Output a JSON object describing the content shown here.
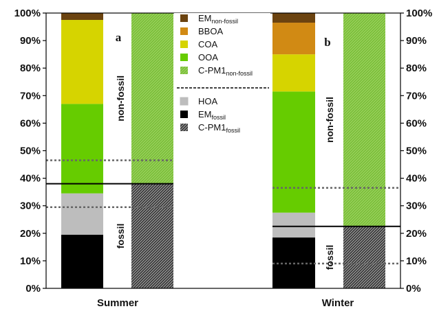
{
  "chart_data": {
    "type": "bar",
    "stacked": true,
    "categories": [
      "Summer",
      "Winter"
    ],
    "panel_labels": [
      "a",
      "b"
    ],
    "y_ticks": [
      "0%",
      "10%",
      "20%",
      "30%",
      "40%",
      "50%",
      "60%",
      "70%",
      "80%",
      "90%",
      "100%"
    ],
    "ylim": [
      0,
      100
    ],
    "y_unit": "%",
    "grid": false,
    "legend_position": "top-center",
    "colors": {
      "EMnon-fossil": "#6b4310",
      "BBOA": "#d18a14",
      "COA": "#d6d400",
      "OOA": "#66cc00",
      "C-PM1non-fossil": "#7bbf3a",
      "HOA": "#bdbdbd",
      "EMfossil": "#000000",
      "C-PM1fossil": "#3a3a3a"
    },
    "legend": [
      {
        "key": "EMnon-fossil",
        "base": "EM",
        "sub": "non-fossil"
      },
      {
        "key": "BBOA",
        "base": "BBOA",
        "sub": ""
      },
      {
        "key": "COA",
        "base": "COA",
        "sub": ""
      },
      {
        "key": "OOA",
        "base": "OOA",
        "sub": ""
      },
      {
        "key": "C-PM1non-fossil",
        "base": "C-PM1",
        "sub": "non-fossil"
      },
      {
        "key": "HOA",
        "base": "HOA",
        "sub": ""
      },
      {
        "key": "EMfossil",
        "base": "EM",
        "sub": "fossil"
      },
      {
        "key": "C-PM1fossil",
        "base": "C-PM1",
        "sub": "fossil"
      }
    ],
    "series": {
      "Summer": {
        "composition": [
          {
            "key": "EMfossil",
            "value": 19.5
          },
          {
            "key": "HOA",
            "value": 15
          },
          {
            "key": "OOA",
            "value": 32.5
          },
          {
            "key": "COA",
            "value": 30.5
          },
          {
            "key": "EMnon-fossil",
            "value": 2.5
          }
        ],
        "c_pm1": [
          {
            "key": "C-PM1fossil",
            "value": 38
          },
          {
            "key": "C-PM1non-fossil",
            "value": 62
          }
        ],
        "fossil_line": 38,
        "dotted_lines": [
          29.5,
          46.5
        ],
        "labels": {
          "fossil": "fossil",
          "nonfossil": "non-fossil"
        }
      },
      "Winter": {
        "composition": [
          {
            "key": "EMfossil",
            "value": 18.5
          },
          {
            "key": "HOA",
            "value": 9
          },
          {
            "key": "OOA",
            "value": 44
          },
          {
            "key": "COA",
            "value": 13.5
          },
          {
            "key": "BBOA",
            "value": 11.5
          },
          {
            "key": "EMnon-fossil",
            "value": 3.5
          }
        ],
        "c_pm1": [
          {
            "key": "C-PM1fossil",
            "value": 22.5
          },
          {
            "key": "C-PM1non-fossil",
            "value": 77.5
          }
        ],
        "fossil_line": 22.5,
        "dotted_lines": [
          9,
          36.5
        ],
        "labels": {
          "fossil": "fossil",
          "nonfossil": "non-fossil"
        }
      }
    }
  }
}
